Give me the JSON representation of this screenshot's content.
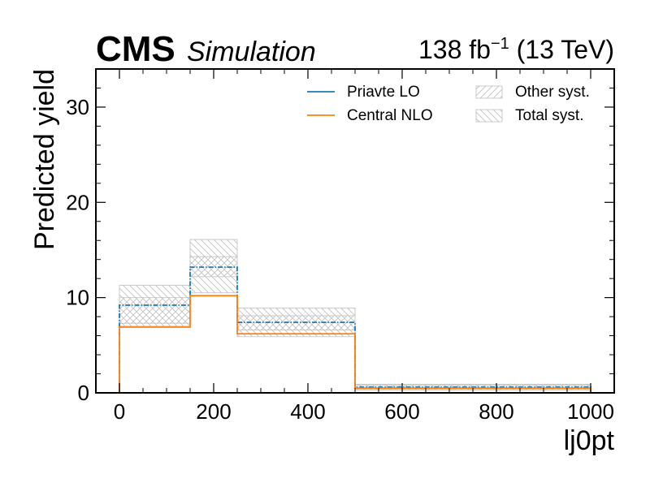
{
  "header": {
    "experiment": "CMS",
    "tag": "Simulation",
    "lumi_prefix": "138 fb",
    "lumi_exp": "−1",
    "lumi_suffix": " (13 TeV)"
  },
  "chart_data": {
    "type": "step",
    "xlabel": "lj0pt",
    "ylabel": "Predicted yield",
    "xlim": [
      -50,
      1050
    ],
    "ylim": [
      0,
      34
    ],
    "xticks": [
      0,
      200,
      400,
      600,
      800,
      1000
    ],
    "yticks": [
      0,
      10,
      20,
      30
    ],
    "bin_edges": [
      0,
      150,
      250,
      500,
      1000
    ],
    "series": [
      {
        "name": "Priavte LO",
        "color": "#1f77b4",
        "style": "dashdot",
        "values": [
          9.2,
          13.2,
          7.4,
          0.6
        ]
      },
      {
        "name": "Central NLO",
        "color": "#ff7f0e",
        "style": "solid",
        "values": [
          6.9,
          10.2,
          6.2,
          0.5
        ]
      }
    ],
    "bands": [
      {
        "name": "Other syst.",
        "hatch": "forward",
        "low": [
          7.3,
          12.2,
          6.6,
          0.35
        ],
        "high": [
          10.0,
          14.3,
          8.1,
          0.8
        ]
      },
      {
        "name": "Total syst.",
        "hatch": "backward",
        "low": [
          7.0,
          10.5,
          5.9,
          0.3
        ],
        "high": [
          11.3,
          16.1,
          8.9,
          0.9
        ]
      }
    ],
    "legend_position": "top-right",
    "legend_columns": 2
  }
}
